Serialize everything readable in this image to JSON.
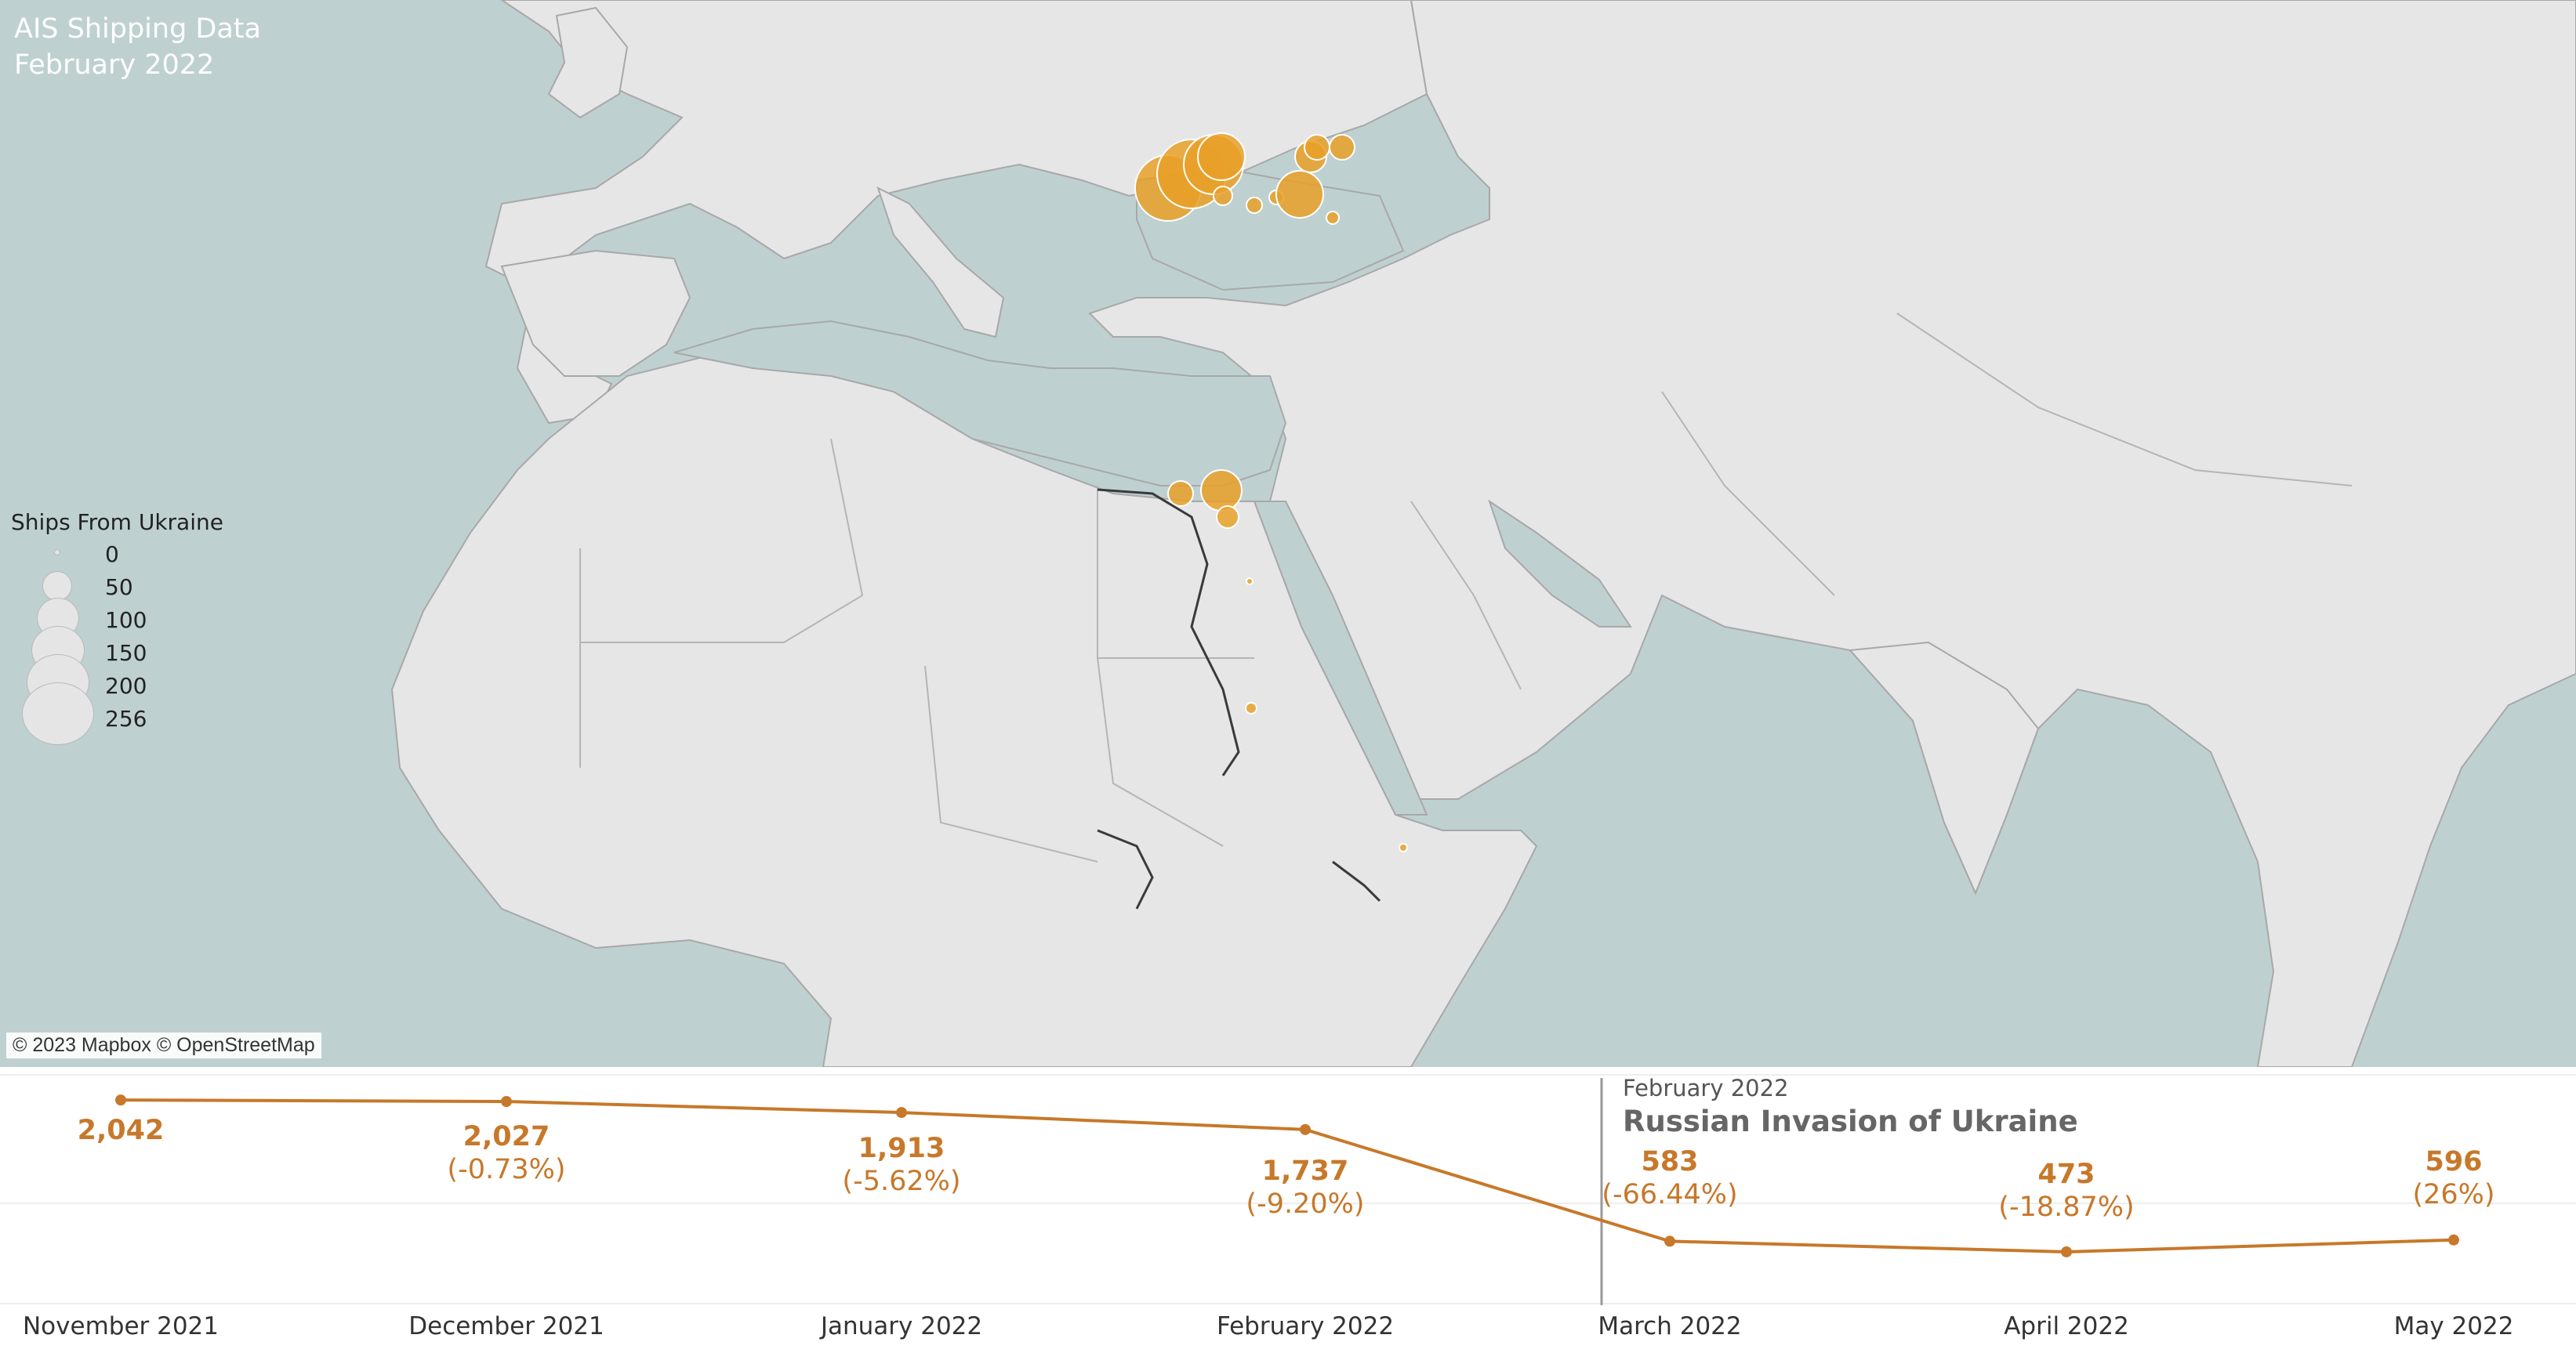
{
  "map": {
    "title_line1": "AIS Shipping Data",
    "title_line2": "February 2022",
    "attribution": "© 2023 Mapbox © OpenStreetMap",
    "colors": {
      "sea": "#bfd0d0",
      "land": "#e6e6e6",
      "border": "#a8a8a8",
      "bubble": "#e8a028",
      "bubble_stroke": "#ffffff"
    },
    "legend": {
      "title": "Ships From Ukraine",
      "items": [
        {
          "label": "0"
        },
        {
          "label": "50"
        },
        {
          "label": "100"
        },
        {
          "label": "150"
        },
        {
          "label": "200"
        },
        {
          "label": "256"
        }
      ]
    }
  },
  "annotation": {
    "date": "February 2022",
    "title": "Russian Invasion of Ukraine"
  },
  "chart_data": {
    "type": "line",
    "categories": [
      "November 2021",
      "December 2021",
      "January 2022",
      "February 2022",
      "March 2022",
      "April 2022",
      "May 2022"
    ],
    "values": [
      2042,
      2027,
      1913,
      1737,
      583,
      473,
      596
    ],
    "value_labels": [
      "2,042",
      "2,027",
      "1,913",
      "1,737",
      "583",
      "473",
      "596"
    ],
    "pct_labels": [
      "",
      "(-0.73%)",
      "(-5.62%)",
      "(-9.20%)",
      "(-66.44%)",
      "(-18.87%)",
      "(26%)"
    ],
    "line_color": "#c7782a",
    "ylim": [
      400,
      2100
    ],
    "grid": true,
    "xlabel": "",
    "ylabel": ""
  }
}
